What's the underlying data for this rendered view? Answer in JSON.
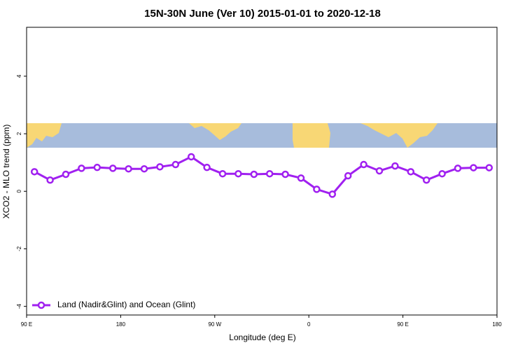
{
  "chart_data": {
    "type": "line",
    "title": "15N-30N June (Ver 10)   2015-01-01 to 2020-12-18",
    "x_label": "Longitude (deg E)",
    "y_label": "XCO2 - MLO trend (ppm)",
    "x": [
      97.5,
      112.5,
      127.5,
      142.5,
      157.5,
      172.5,
      187.5,
      202.5,
      217.5,
      232.5,
      247.5,
      262.5,
      277.5,
      292.5,
      307.5,
      322.5,
      337.5,
      352.5,
      367.5,
      382.5,
      397.5,
      412.5,
      427.5,
      442.5,
      457.5,
      472.5,
      487.5,
      502.5,
      517.5,
      532.5
    ],
    "series": [
      {
        "name": "Land (Nadir&Glint) and Ocean (Glint)",
        "color": "#a020f0",
        "values": [
          0.68,
          0.39,
          0.59,
          0.8,
          0.83,
          0.8,
          0.78,
          0.78,
          0.85,
          0.93,
          1.2,
          0.83,
          0.61,
          0.61,
          0.59,
          0.61,
          0.59,
          0.46,
          0.07,
          -0.1,
          0.54,
          0.93,
          0.71,
          0.88,
          0.68,
          0.39,
          0.61,
          0.8,
          0.82,
          0.82
        ]
      }
    ],
    "xlim": [
      90,
      540
    ],
    "xticks": [
      {
        "value": 90,
        "label": "90 E"
      },
      180,
      {
        "value": 270,
        "label": "90 W"
      },
      {
        "value": 360,
        "label": "0"
      },
      {
        "value": 450,
        "label": "90 E"
      },
      {
        "value": 540,
        "label": "180"
      }
    ],
    "ylim": [
      -4.3,
      5.7
    ],
    "yticks": [
      -4,
      -2,
      0,
      2,
      4
    ],
    "legend_position": "bottom-left"
  }
}
